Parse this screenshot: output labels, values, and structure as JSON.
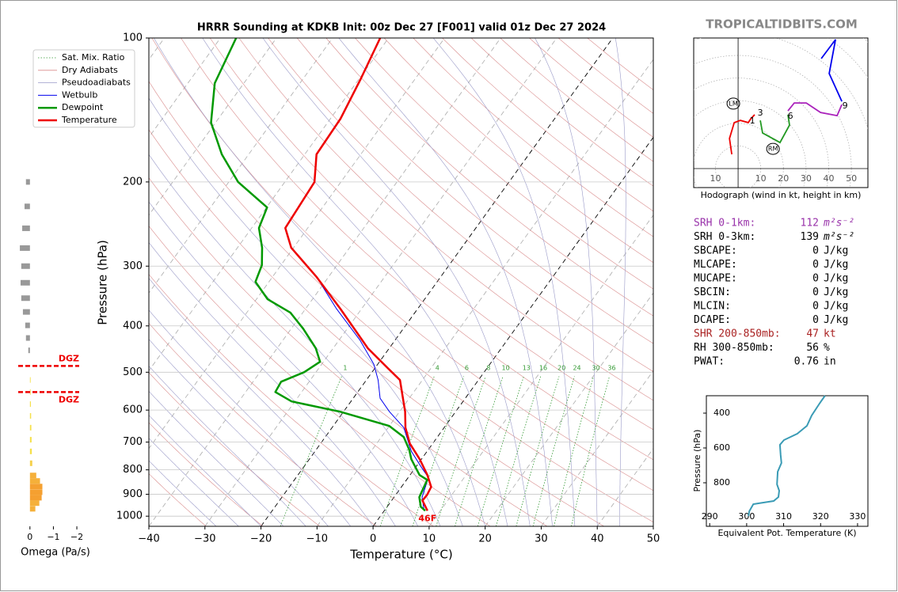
{
  "site": "TROPICALTIDBITS.COM",
  "chart_data": [
    {
      "type": "skewt",
      "title": "HRRR Sounding at KDKB Init: 00z Dec 27 [F001] valid 01z Dec 27 2024",
      "x_label": "Temperature (°C)",
      "y_label": "Pressure (hPa)",
      "xlim": [
        -40,
        50
      ],
      "xticks": [
        {
          "value": -40,
          "label": "−40"
        },
        {
          "value": -30,
          "label": "−30"
        },
        {
          "value": -20,
          "label": "−20"
        },
        {
          "value": -10,
          "label": "−10"
        },
        0,
        10,
        20,
        30,
        40,
        50
      ],
      "ylim": [
        1050,
        100
      ],
      "yticks": [
        100,
        200,
        300,
        400,
        500,
        600,
        700,
        800,
        900,
        1000
      ],
      "log_scale": true,
      "grid": true,
      "legend": "upper left",
      "background_lines": [
        {
          "name": "Sat. Mix. Ratio",
          "color": "#339933",
          "linestyle": "dotted"
        },
        {
          "name": "Dry Adiabats",
          "color": "#d98c8c",
          "linestyle": "solid"
        },
        {
          "name": "Pseudoadiabats",
          "color": "#9a9ac8",
          "linestyle": "solid"
        }
      ],
      "mixing_ratios": [
        1,
        4,
        6,
        8,
        10,
        13,
        16,
        20,
        24,
        30,
        36
      ],
      "series": [
        {
          "name": "Wetbulb",
          "color": "#0000ee",
          "width": 1,
          "pressure": [
            100,
            121.9,
            147.5,
            175.1,
            200.2,
            249.7,
            274.6,
            316.2,
            368.3,
            429,
            481,
            519.2,
            566.8,
            604.8,
            652.9,
            731.9,
            789.6,
            829.9,
            912.5,
            974
          ],
          "values": [
            -61.5,
            -59.7,
            -58.2,
            -57.9,
            -54.7,
            -54.0,
            -50.4,
            -42.1,
            -34.5,
            -26.2,
            -20.7,
            -17.9,
            -15.2,
            -11.8,
            -7.2,
            -2.8,
            1.0,
            3.6,
            5.0,
            7.1
          ]
        },
        {
          "name": "Dewpoint",
          "color": "#009900",
          "width": 2.5,
          "pressure": [
            100,
            124.3,
            150.3,
            175.1,
            200.2,
            226.1,
            249.7,
            274.6,
            298.7,
            323.6,
            351.8,
            375.4,
            405.2,
            445.6,
            475.5,
            499.8,
            523.3,
            549.9,
            575.4,
            604.8,
            647.6,
            683.1,
            726,
            760.1,
            820.1,
            839.6,
            912.5,
            955.5,
            974
          ],
          "values": [
            -87.2,
            -85.2,
            -80.8,
            -74.8,
            -68.3,
            -59.9,
            -58.7,
            -55.6,
            -53.4,
            -52.4,
            -48.0,
            -42.2,
            -37.9,
            -33.1,
            -30.6,
            -32.1,
            -35.0,
            -34.7,
            -30.6,
            -20.6,
            -10.0,
            -6.0,
            -3.4,
            -1.8,
            1.7,
            3.7,
            4.5,
            6.0,
            7.3
          ]
        },
        {
          "name": "Temperature",
          "color": "#ee0000",
          "width": 2.5,
          "pressure": [
            100,
            121.9,
            147.5,
            175.1,
            200.2,
            249.7,
            274.6,
            316.2,
            368.3,
            445.6,
            490.2,
            519.2,
            604.8,
            652.9,
            704.4,
            760.1,
            820.1,
            868.6,
            902.5,
            927.3,
            974
          ],
          "values": [
            -61.5,
            -59.7,
            -58.2,
            -57.9,
            -54.7,
            -54.0,
            -50.4,
            -42.1,
            -33.8,
            -23.8,
            -17.7,
            -14.0,
            -9.0,
            -6.9,
            -4.1,
            -0.3,
            3.1,
            5.3,
            5.6,
            5.5,
            7.7
          ]
        }
      ],
      "surface_label": "46F"
    },
    {
      "type": "omega",
      "x_label": "Omega (Pa/s)",
      "xlim": [
        0.5,
        -2.1
      ],
      "xticks": [
        0,
        {
          "value": -1,
          "label": "−1"
        },
        {
          "value": -2,
          "label": "−2"
        }
      ],
      "ylim": [
        1050,
        100
      ],
      "log_scale": true,
      "pressure": [
        200,
        225,
        250,
        275,
        300,
        325,
        350,
        374,
        399,
        424,
        450,
        519,
        550,
        583,
        617,
        653,
        692,
        732,
        775,
        822,
        844,
        867,
        891,
        915,
        939,
        965
      ],
      "values": [
        0.17,
        0.23,
        0.33,
        0.43,
        0.37,
        0.4,
        0.37,
        0.3,
        0.2,
        0.17,
        0.07,
        -0.03,
        -0.03,
        -0.04,
        -0.05,
        -0.06,
        -0.07,
        -0.08,
        -0.1,
        -0.27,
        -0.43,
        -0.53,
        -0.53,
        -0.5,
        -0.4,
        -0.23
      ],
      "colors": [
        "#999999",
        "#999999",
        "#999999",
        "#999999",
        "#999999",
        "#999999",
        "#999999",
        "#999999",
        "#999999",
        "#999999",
        "#999999",
        "#f5e04a",
        "#f5e04a",
        "#f5e04a",
        "#f5e04a",
        "#f5e04a",
        "#f5e04a",
        "#f5e04a",
        "#f5d04a",
        "#f5b03a",
        "#f5b03a",
        "#f5a030",
        "#f5a030",
        "#f5a030",
        "#f5b03a",
        "#f5b03a"
      ],
      "dgz_pressures": [
        485,
        550
      ],
      "dgz_label": "DGZ",
      "dgz_color": "#ee0000"
    },
    {
      "type": "hodograph",
      "caption": "Hodograph (wind in kt, height in km)",
      "xlim": [
        -19.6,
        57.3
      ],
      "ylim": [
        -8.4,
        57.7
      ],
      "xticks": [
        {
          "value": -10,
          "label": "10"
        },
        10,
        20,
        30,
        40,
        50
      ],
      "series": [
        {
          "color": "#ee0000",
          "u": [
            -2.8,
            -3.8,
            -1.7,
            1.0,
            4.5,
            5.6,
            7.3
          ],
          "v": [
            6.3,
            13.3,
            20.3,
            21.3,
            20.3,
            22.0,
            23.8
          ]
        },
        {
          "color": "#229922",
          "u": [
            9.8,
            10.8,
            18.5,
            22.7,
            22.0
          ],
          "v": [
            21.3,
            15.7,
            11.5,
            19.2,
            23.8
          ]
        },
        {
          "color": "#aa22bb",
          "u": [
            22.0,
            24.8,
            30.1,
            36.4,
            43.7,
            45.8
          ],
          "v": [
            25.5,
            29.0,
            29.0,
            24.8,
            23.4,
            28.3
          ]
        },
        {
          "color": "#0000ee",
          "u": [
            45.8,
            40.2,
            43.0,
            36.7
          ],
          "v": [
            29.7,
            42.0,
            57.0,
            48.6
          ]
        }
      ],
      "height_marks": [
        {
          "km": 1,
          "u": 4.9,
          "v": 19.6
        },
        {
          "km": 3,
          "u": 8.4,
          "v": 23.1
        },
        {
          "km": 6,
          "u": 21.7,
          "v": 21.7
        },
        {
          "km": 9,
          "u": 45.8,
          "v": 26.2
        }
      ],
      "storm_motion": [
        {
          "label": "LM",
          "u": -2.1,
          "v": 28.7
        },
        {
          "label": "RM",
          "u": 15.4,
          "v": 8.7
        }
      ]
    },
    {
      "type": "thetae",
      "x_label": "Equivalent Pot. Temperature (K)",
      "y_label": "Pressure (hPa)",
      "xlim": [
        289.1,
        332.8
      ],
      "ylim": [
        1050,
        300
      ],
      "xticks": [
        290,
        300,
        310,
        320,
        330
      ],
      "yticks": [
        400,
        600,
        800
      ],
      "color": "#3a9bb5",
      "pressure": [
        300,
        345.5,
        413.6,
        472.7,
        518.2,
        554.5,
        581.8,
        640.9,
        686.4,
        736.4,
        809.1,
        845.5,
        881.8,
        904.5,
        922.7,
        963.6,
        990.9
      ],
      "values": [
        321.2,
        319.7,
        317.6,
        316.3,
        313.7,
        310.1,
        309.0,
        309.2,
        309.4,
        308.4,
        308.2,
        308.8,
        308.6,
        307.3,
        301.8,
        300.7,
        300.5
      ]
    }
  ],
  "indices": [
    {
      "label": "SRH 0-1km:",
      "value": 112,
      "unit": "m²s⁻²",
      "color": "#9933aa"
    },
    {
      "label": "SRH 0-3km:",
      "value": 139,
      "unit": "m²s⁻²",
      "color": "#000000"
    },
    {
      "label": "SBCAPE:",
      "value": 0,
      "unit": "J/kg",
      "color": "#000000"
    },
    {
      "label": "MLCAPE:",
      "value": 0,
      "unit": "J/kg",
      "color": "#000000"
    },
    {
      "label": "MUCAPE:",
      "value": 0,
      "unit": "J/kg",
      "color": "#000000"
    },
    {
      "label": "SBCIN:",
      "value": 0,
      "unit": "J/kg",
      "color": "#000000"
    },
    {
      "label": "MLCIN:",
      "value": 0,
      "unit": "J/kg",
      "color": "#000000"
    },
    {
      "label": "DCAPE:",
      "value": 0,
      "unit": "J/kg",
      "color": "#000000"
    },
    {
      "label": "SHR 200-850mb:",
      "value": 47,
      "unit": "kt",
      "color": "#aa2222"
    },
    {
      "label": "RH 300-850mb:",
      "value": 56,
      "unit": "%",
      "color": "#000000"
    },
    {
      "label": "PWAT:",
      "value": 0.76,
      "unit": "in",
      "color": "#000000"
    }
  ]
}
